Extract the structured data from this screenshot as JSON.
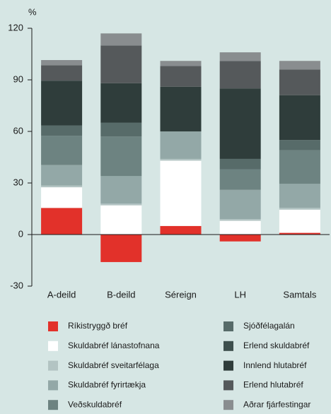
{
  "chart_data": {
    "type": "stacked_bar",
    "y_axis_label": "%",
    "categories": [
      "A-deild",
      "B-deild",
      "Séreign",
      "LH",
      "Samtals"
    ],
    "series": [
      {
        "name": "Ríkistryggð bréf",
        "color": "#e2312a",
        "values": [
          15.5,
          -16,
          5,
          -4,
          1
        ]
      },
      {
        "name": "Skuldabréf lánastofnana",
        "color": "#ffffff",
        "values": [
          12,
          17,
          38,
          8,
          13.5
        ]
      },
      {
        "name": "Skuldabréf sveitarfélaga",
        "color": "#b3c4c3",
        "values": [
          1,
          1,
          1,
          1,
          1
        ]
      },
      {
        "name": "Skuldabréf fyrirtækja",
        "color": "#93a8a7",
        "values": [
          12,
          16,
          16,
          17,
          14
        ]
      },
      {
        "name": "Veðskuldabréf",
        "color": "#6d8381",
        "values": [
          17,
          23,
          0,
          12,
          19.5
        ]
      },
      {
        "name": "Sjóðfélagalán",
        "color": "#576b69",
        "values": [
          6,
          8,
          0,
          6,
          6
        ]
      },
      {
        "name": "Erlend skuldabréf",
        "color": "#3d4f4d",
        "values": [
          0,
          0,
          0,
          0,
          0
        ]
      },
      {
        "name": "Innlend hlutabréf",
        "color": "#2f3d3b",
        "values": [
          26,
          23,
          26,
          41,
          26
        ]
      },
      {
        "name": "Erlend hlutabréf",
        "color": "#55595b",
        "values": [
          9,
          22,
          12,
          16,
          15
        ]
      },
      {
        "name": "Aðrar fjárfestingar",
        "color": "#898d8f",
        "values": [
          3,
          7,
          3,
          5,
          5
        ]
      }
    ],
    "ylim": [
      -30,
      120
    ],
    "yticks": [
      -30,
      0,
      30,
      60,
      90,
      120
    ]
  }
}
